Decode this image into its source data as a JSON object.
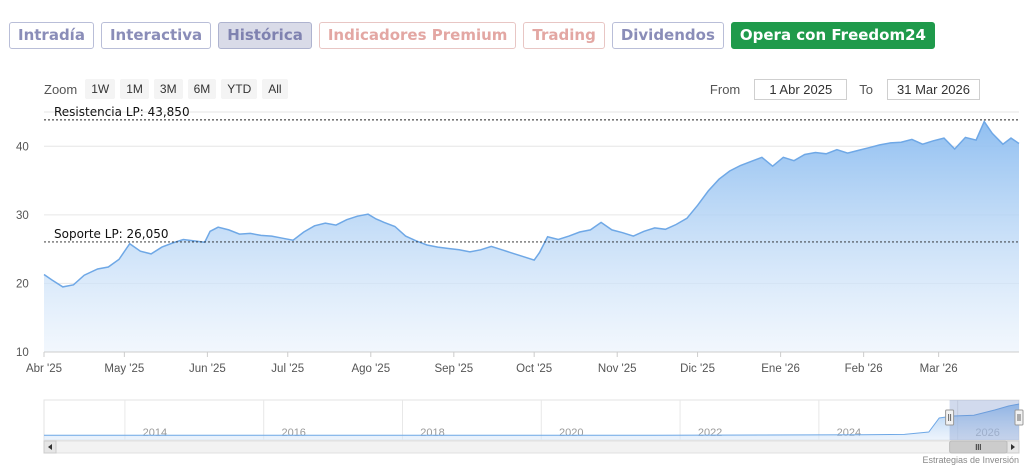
{
  "tabs": [
    {
      "label": "Intradía"
    },
    {
      "label": "Interactiva"
    },
    {
      "label": "Histórica"
    },
    {
      "label": "Indicadores Premium"
    },
    {
      "label": "Trading"
    },
    {
      "label": "Dividendos"
    },
    {
      "label": "Opera con Freedom24"
    }
  ],
  "zoom": {
    "label": "Zoom",
    "buttons": [
      "1W",
      "1M",
      "3M",
      "6M",
      "YTD",
      "All"
    ]
  },
  "range": {
    "from_label": "From",
    "from_value": "1 Abr 2025",
    "to_label": "To",
    "to_value": "31 Mar 2026"
  },
  "credits": "Estrategias de Inversión",
  "colors": {
    "line": "#6fa8e6",
    "fill_top": "#8bbcf0",
    "fill_bottom": "#e9f2fc",
    "cta": "#1f9a4b"
  },
  "chart_data": {
    "type": "area",
    "ylim": [
      10,
      45
    ],
    "yticks": [
      "10",
      "20",
      "30",
      "40"
    ],
    "ytick_values": [
      10,
      20,
      30,
      40
    ],
    "xlim": [
      "2025-04-01",
      "2026-03-31"
    ],
    "xticks": [
      {
        "date": "2025-04-01",
        "label": "Abr '25"
      },
      {
        "date": "2025-05-01",
        "label": "May '25"
      },
      {
        "date": "2025-06-01",
        "label": "Jun '25"
      },
      {
        "date": "2025-07-01",
        "label": "Jul '25"
      },
      {
        "date": "2025-08-01",
        "label": "Ago '25"
      },
      {
        "date": "2025-09-01",
        "label": "Sep '25"
      },
      {
        "date": "2025-10-01",
        "label": "Oct '25"
      },
      {
        "date": "2025-11-01",
        "label": "Nov '25"
      },
      {
        "date": "2025-12-01",
        "label": "Dic '25"
      },
      {
        "date": "2026-01-01",
        "label": "Ene '26"
      },
      {
        "date": "2026-02-01",
        "label": "Feb '26"
      },
      {
        "date": "2026-03-01",
        "label": "Mar '26"
      }
    ],
    "grid": true,
    "annotations": [
      {
        "label": "Resistencia LP: 43,850",
        "value": 43.85
      },
      {
        "label": "Soporte LP: 26,050",
        "value": 26.05
      }
    ],
    "series": [
      {
        "x": [
          "2025-04-01",
          "2025-04-04",
          "2025-04-08",
          "2025-04-12",
          "2025-04-16",
          "2025-04-21",
          "2025-04-25",
          "2025-04-29",
          "2025-05-03",
          "2025-05-07",
          "2025-05-11",
          "2025-05-15",
          "2025-05-19",
          "2025-05-23",
          "2025-05-27",
          "2025-05-31",
          "2025-06-02",
          "2025-06-05",
          "2025-06-09",
          "2025-06-13",
          "2025-06-17",
          "2025-06-21",
          "2025-06-25",
          "2025-06-29",
          "2025-07-03",
          "2025-07-07",
          "2025-07-11",
          "2025-07-15",
          "2025-07-19",
          "2025-07-23",
          "2025-07-27",
          "2025-07-31",
          "2025-08-03",
          "2025-08-06",
          "2025-08-10",
          "2025-08-14",
          "2025-08-18",
          "2025-08-22",
          "2025-08-26",
          "2025-08-30",
          "2025-09-03",
          "2025-09-07",
          "2025-09-11",
          "2025-09-15",
          "2025-09-19",
          "2025-09-23",
          "2025-09-27",
          "2025-10-01",
          "2025-10-03",
          "2025-10-06",
          "2025-10-10",
          "2025-10-14",
          "2025-10-18",
          "2025-10-22",
          "2025-10-26",
          "2025-10-30",
          "2025-11-03",
          "2025-11-07",
          "2025-11-11",
          "2025-11-15",
          "2025-11-19",
          "2025-11-23",
          "2025-11-27",
          "2025-12-01",
          "2025-12-05",
          "2025-12-09",
          "2025-12-13",
          "2025-12-17",
          "2025-12-21",
          "2025-12-25",
          "2025-12-29",
          "2026-01-02",
          "2026-01-06",
          "2026-01-10",
          "2026-01-14",
          "2026-01-18",
          "2026-01-22",
          "2026-01-26",
          "2026-01-30",
          "2026-02-03",
          "2026-02-07",
          "2026-02-11",
          "2026-02-15",
          "2026-02-19",
          "2026-02-23",
          "2026-02-27",
          "2026-03-03",
          "2026-03-07",
          "2026-03-11",
          "2026-03-15",
          "2026-03-18",
          "2026-03-21",
          "2026-03-25",
          "2026-03-28",
          "2026-03-31"
        ],
        "y": [
          21.3,
          20.5,
          19.5,
          19.8,
          21.2,
          22.1,
          22.4,
          23.5,
          25.8,
          24.7,
          24.3,
          25.3,
          25.9,
          26.4,
          26.2,
          26.0,
          27.6,
          28.2,
          27.8,
          27.2,
          27.3,
          27.0,
          26.9,
          26.6,
          26.3,
          27.5,
          28.4,
          28.8,
          28.5,
          29.3,
          29.8,
          30.1,
          29.4,
          28.9,
          28.3,
          26.9,
          26.2,
          25.6,
          25.3,
          25.1,
          24.9,
          24.6,
          24.9,
          25.4,
          24.9,
          24.4,
          23.9,
          23.4,
          24.5,
          26.8,
          26.4,
          26.9,
          27.5,
          27.8,
          28.9,
          27.8,
          27.4,
          26.9,
          27.6,
          28.1,
          27.9,
          28.6,
          29.5,
          31.4,
          33.5,
          35.2,
          36.4,
          37.2,
          37.8,
          38.4,
          37.1,
          38.4,
          37.9,
          38.8,
          39.1,
          38.9,
          39.5,
          39.0,
          39.4,
          39.8,
          40.2,
          40.5,
          40.6,
          41.0,
          40.3,
          40.8,
          41.2,
          39.6,
          41.3,
          40.9,
          43.6,
          41.9,
          40.3,
          41.2,
          40.4
        ]
      }
    ]
  },
  "navigator": {
    "year_labels": [
      "2014",
      "2016",
      "2018",
      "2020",
      "2022",
      "2024",
      "2026"
    ],
    "year_values": [
      2014,
      2016,
      2018,
      2020,
      2022,
      2024,
      2026
    ],
    "x_range": [
      2012.2,
      2026.25
    ],
    "window": [
      2025.25,
      2026.25
    ],
    "series": [
      {
        "x": 2012.2,
        "y": 0.12
      },
      {
        "x": 2015,
        "y": 0.12
      },
      {
        "x": 2018,
        "y": 0.12
      },
      {
        "x": 2021,
        "y": 0.12
      },
      {
        "x": 2024,
        "y": 0.13
      },
      {
        "x": 2024.6,
        "y": 0.14
      },
      {
        "x": 2024.95,
        "y": 0.2
      },
      {
        "x": 2025.1,
        "y": 0.55
      },
      {
        "x": 2025.3,
        "y": 0.6
      },
      {
        "x": 2025.6,
        "y": 0.62
      },
      {
        "x": 2025.9,
        "y": 0.75
      },
      {
        "x": 2026.1,
        "y": 0.85
      },
      {
        "x": 2026.25,
        "y": 0.9
      }
    ]
  }
}
